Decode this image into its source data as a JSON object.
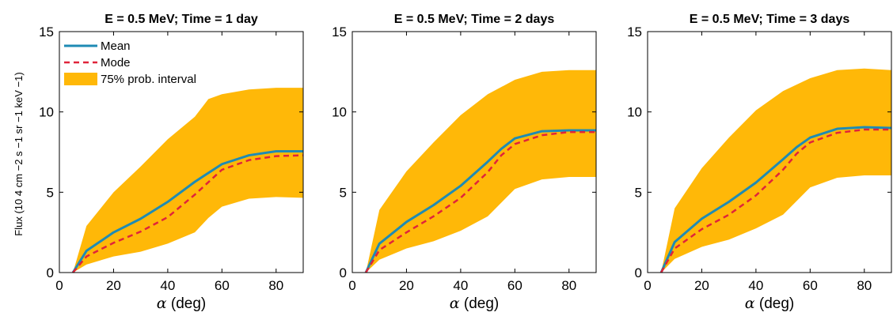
{
  "chart_data": [
    {
      "type": "line",
      "title": "E = 0.5 MeV; Time = 1 day",
      "xlabel": "α (deg)",
      "ylabel": "Flux (10 4 cm −2 s −1 sr −1 keV −1)",
      "xlim": [
        0,
        90
      ],
      "ylim": [
        0,
        15
      ],
      "x_ticks": [
        "0",
        "20",
        "40",
        "60",
        "80"
      ],
      "y_ticks": [
        "0",
        "5",
        "10",
        "15"
      ],
      "legend": {
        "position": "top-left",
        "entries": [
          "Mean",
          "Mode",
          "75% prob. interval"
        ]
      },
      "series": [
        {
          "name": "Mean",
          "x": [
            5,
            10,
            20,
            30,
            40,
            50,
            60,
            70,
            80,
            90
          ],
          "values": [
            0,
            1.35,
            2.5,
            3.35,
            4.4,
            5.65,
            6.75,
            7.3,
            7.55,
            7.55
          ]
        },
        {
          "name": "Mode",
          "x": [
            5,
            10,
            20,
            30,
            40,
            50,
            60,
            70,
            80,
            90
          ],
          "values": [
            0,
            1.0,
            1.85,
            2.55,
            3.45,
            4.85,
            6.4,
            7.0,
            7.25,
            7.3
          ]
        },
        {
          "name": "75% prob. interval",
          "x": [
            5,
            10,
            20,
            30,
            40,
            50,
            55,
            60,
            70,
            80,
            90
          ],
          "lower": [
            0,
            0.5,
            1.0,
            1.3,
            1.8,
            2.5,
            3.4,
            4.1,
            4.6,
            4.7,
            4.65
          ],
          "upper": [
            0,
            2.9,
            5.0,
            6.6,
            8.3,
            9.7,
            10.8,
            11.1,
            11.4,
            11.5,
            11.5
          ]
        }
      ]
    },
    {
      "type": "line",
      "title": "E = 0.5 MeV; Time = 2 days",
      "xlabel": "α (deg)",
      "xlim": [
        0,
        90
      ],
      "ylim": [
        0,
        15
      ],
      "x_ticks": [
        "0",
        "20",
        "40",
        "60",
        "80"
      ],
      "y_ticks": [
        "0",
        "5",
        "10",
        "15"
      ],
      "series": [
        {
          "name": "Mean",
          "x": [
            5,
            10,
            20,
            30,
            40,
            50,
            55,
            60,
            70,
            80,
            90
          ],
          "values": [
            0,
            1.8,
            3.15,
            4.2,
            5.4,
            6.9,
            7.7,
            8.35,
            8.8,
            8.85,
            8.85
          ]
        },
        {
          "name": "Mode",
          "x": [
            5,
            10,
            20,
            30,
            40,
            50,
            55,
            60,
            70,
            80,
            90
          ],
          "values": [
            0,
            1.4,
            2.5,
            3.5,
            4.65,
            6.25,
            7.3,
            8.0,
            8.55,
            8.75,
            8.75
          ]
        },
        {
          "name": "75% prob. interval",
          "x": [
            5,
            10,
            20,
            30,
            40,
            50,
            60,
            70,
            80,
            90
          ],
          "lower": [
            0,
            0.8,
            1.5,
            1.95,
            2.6,
            3.5,
            5.2,
            5.8,
            5.95,
            5.95
          ],
          "upper": [
            0,
            3.9,
            6.3,
            8.1,
            9.8,
            11.1,
            12.0,
            12.5,
            12.6,
            12.6
          ]
        }
      ]
    },
    {
      "type": "line",
      "title": "E = 0.5 MeV; Time = 3 days",
      "xlabel": "α (deg)",
      "xlim": [
        0,
        90
      ],
      "ylim": [
        0,
        15
      ],
      "x_ticks": [
        "0",
        "20",
        "40",
        "60",
        "80"
      ],
      "y_ticks": [
        "0",
        "5",
        "10",
        "15"
      ],
      "series": [
        {
          "name": "Mean",
          "x": [
            5,
            10,
            20,
            30,
            40,
            50,
            55,
            60,
            70,
            80,
            90
          ],
          "values": [
            0,
            1.9,
            3.35,
            4.4,
            5.6,
            7.05,
            7.8,
            8.4,
            8.95,
            9.05,
            9.0
          ]
        },
        {
          "name": "Mode",
          "x": [
            5,
            10,
            20,
            30,
            40,
            50,
            55,
            60,
            70,
            80,
            90
          ],
          "values": [
            0,
            1.5,
            2.7,
            3.6,
            4.8,
            6.4,
            7.4,
            8.1,
            8.7,
            8.9,
            8.9
          ]
        },
        {
          "name": "75% prob. interval",
          "x": [
            5,
            10,
            20,
            30,
            40,
            50,
            60,
            70,
            80,
            90
          ],
          "lower": [
            0,
            0.85,
            1.6,
            2.05,
            2.75,
            3.6,
            5.3,
            5.9,
            6.05,
            6.05
          ],
          "upper": [
            0,
            4.0,
            6.5,
            8.4,
            10.1,
            11.3,
            12.1,
            12.6,
            12.7,
            12.6
          ]
        }
      ]
    }
  ],
  "colors": {
    "mean": "#1f8bb4",
    "mode": "#e0243a",
    "interval": "#ffb808"
  }
}
